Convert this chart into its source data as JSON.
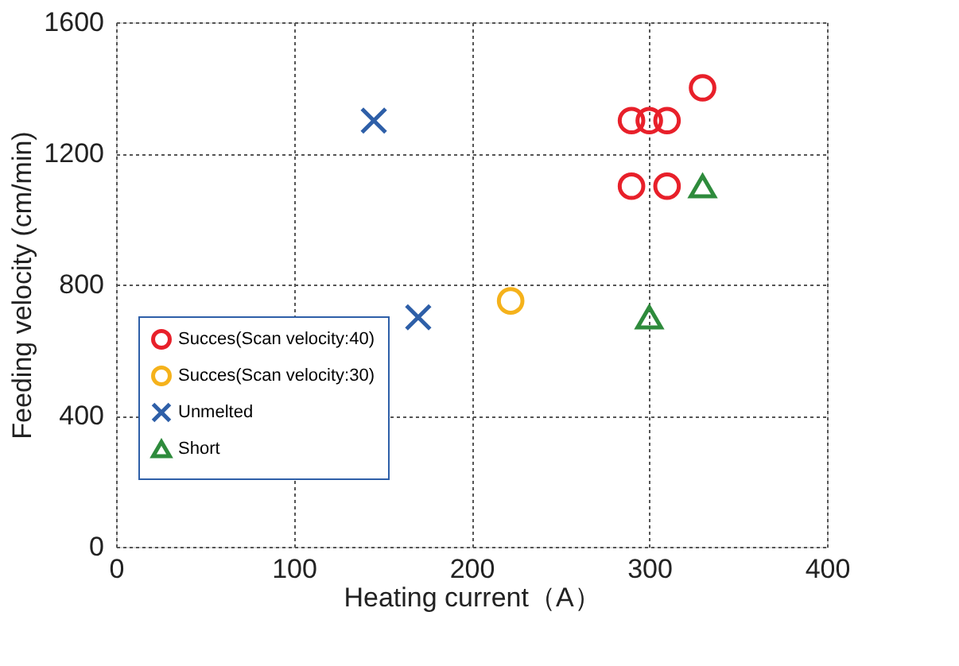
{
  "chart_data": {
    "type": "scatter",
    "xlabel": "Heating current（A）",
    "ylabel": "Feeding velocity (cm/min)",
    "xlim": [
      0,
      400
    ],
    "xticks": [
      0,
      100,
      200,
      300,
      400
    ],
    "ylim": [
      0,
      1600
    ],
    "yticks": [
      0,
      400,
      800,
      1200,
      1600
    ],
    "grid": true,
    "legend": "bottom left",
    "series": [
      {
        "name": "Succes(Scan velocity:40)",
        "color": "#e8202a",
        "marker": "circle",
        "x": [
          290,
          300,
          310,
          330,
          290,
          310
        ],
        "values": [
          1300,
          1300,
          1300,
          1400,
          1100,
          1100
        ]
      },
      {
        "name": "Succes(Scan velocity:30)",
        "color": "#f5b21b",
        "marker": "circle",
        "x": [
          222
        ],
        "values": [
          750
        ]
      },
      {
        "name": "Unmelted",
        "color": "#2e5fa8",
        "marker": "cross",
        "x": [
          145,
          170
        ],
        "values": [
          1300,
          700
        ]
      },
      {
        "name": "Short",
        "color": "#2e8b3c",
        "marker": "triangle",
        "x": [
          300,
          330
        ],
        "values": [
          700,
          1100
        ]
      }
    ]
  }
}
